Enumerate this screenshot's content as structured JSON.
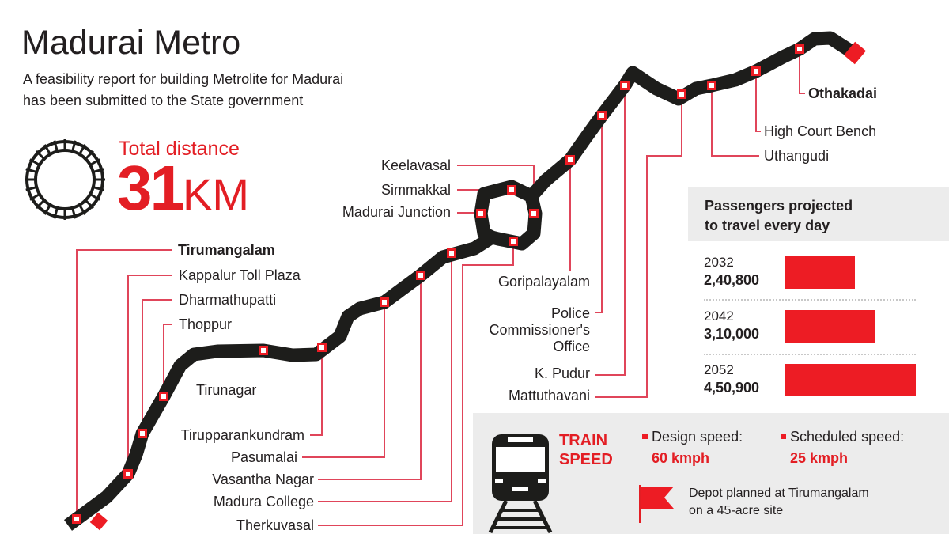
{
  "header": {
    "title": "Madurai Metro",
    "subtitle_line1": "A feasibility report for building Metrolite for Madurai",
    "subtitle_line2": "has been submitted to the State government"
  },
  "distance": {
    "label": "Total distance",
    "value": "31",
    "unit": "KM",
    "icon": "circular-track-icon"
  },
  "stations": {
    "tirumangalam": "Tirumangalam",
    "kappalur": "Kappalur Toll Plaza",
    "dharmathupatti": "Dharmathupatti",
    "thoppur": "Thoppur",
    "tirunagar": "Tirunagar",
    "tirupparankundram": "Tirupparankundram",
    "pasumalai": "Pasumalai",
    "vasantha_nagar": "Vasantha Nagar",
    "madura_college": "Madura College",
    "therkuvasal": "Therkuvasal",
    "madurai_junction": "Madurai Junction",
    "simmakkal": "Simmakkal",
    "keelavasal": "Keelavasal",
    "goripalayalam": "Goripalayalam",
    "police_1": "Police",
    "police_2": "Commissioner's",
    "police_3": "Office",
    "k_pudur": "K. Pudur",
    "mattuthavani": "Mattuthavani",
    "uthangudi": "Uthangudi",
    "high_court": "High Court Bench",
    "othakadai": "Othakadai"
  },
  "colors": {
    "accent": "#e31e24",
    "route": "#1d1d1b",
    "panel": "#ececec"
  },
  "passengers": {
    "title_line1": "Passengers projected",
    "title_line2": "to travel every day",
    "rows": [
      {
        "year": "2032",
        "value_label": "2,40,800",
        "value": 240800
      },
      {
        "year": "2042",
        "value_label": "3,10,000",
        "value": 310000
      },
      {
        "year": "2052",
        "value_label": "4,50,900",
        "value": 450900
      }
    ]
  },
  "chart_data": {
    "type": "bar",
    "title": "Passengers projected to travel every day",
    "categories": [
      "2032",
      "2042",
      "2052"
    ],
    "values": [
      240800,
      310000,
      450900
    ],
    "orientation": "horizontal"
  },
  "speed": {
    "title_line1": "TRAIN",
    "title_line2": "SPEED",
    "design_label": "Design speed:",
    "design_value": "60 kmph",
    "scheduled_label": "Scheduled speed:",
    "scheduled_value": "25 kmph",
    "depot_line1": "Depot planned at Tirumangalam",
    "depot_line2": "on a 45-acre site"
  }
}
